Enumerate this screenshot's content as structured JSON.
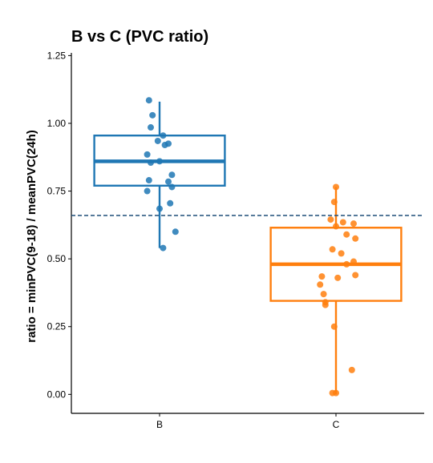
{
  "chart_data": {
    "type": "box",
    "title": "B vs C (PVC ratio)",
    "xlabel": "",
    "ylabel": "ratio = minPVC(9-18) / meanPVC(24h)",
    "ylim": [
      -0.07,
      1.26
    ],
    "yticks": [
      0.0,
      0.25,
      0.5,
      0.75,
      1.0,
      1.25
    ],
    "ytick_labels": [
      "0.00",
      "0.25",
      "0.50",
      "0.75",
      "1.00",
      "1.25"
    ],
    "categories": [
      "B",
      "C"
    ],
    "reference_line": {
      "y": 0.66,
      "style": "dashed",
      "color": "#1f4e79"
    },
    "grid": false,
    "groups": [
      {
        "name": "B",
        "color": "#1f77b4",
        "box": {
          "q1": 0.77,
          "median": 0.86,
          "q3": 0.955,
          "whisker_low": 0.54,
          "whisker_high": 1.08
        },
        "points": [
          {
            "x": 0.94,
            "y": 1.085
          },
          {
            "x": 0.96,
            "y": 1.03
          },
          {
            "x": 0.95,
            "y": 0.985
          },
          {
            "x": 1.02,
            "y": 0.955
          },
          {
            "x": 0.99,
            "y": 0.935
          },
          {
            "x": 1.05,
            "y": 0.925
          },
          {
            "x": 1.03,
            "y": 0.92
          },
          {
            "x": 0.93,
            "y": 0.885
          },
          {
            "x": 1.0,
            "y": 0.86
          },
          {
            "x": 0.95,
            "y": 0.855
          },
          {
            "x": 1.07,
            "y": 0.81
          },
          {
            "x": 0.94,
            "y": 0.79
          },
          {
            "x": 1.05,
            "y": 0.785
          },
          {
            "x": 1.07,
            "y": 0.765
          },
          {
            "x": 0.93,
            "y": 0.75
          },
          {
            "x": 1.06,
            "y": 0.705
          },
          {
            "x": 1.0,
            "y": 0.685
          },
          {
            "x": 1.09,
            "y": 0.6
          },
          {
            "x": 1.02,
            "y": 0.54
          }
        ]
      },
      {
        "name": "C",
        "color": "#ff7f0e",
        "box": {
          "q1": 0.345,
          "median": 0.48,
          "q3": 0.615,
          "whisker_low": 0.0,
          "whisker_high": 0.765
        },
        "points": [
          {
            "x": 2.0,
            "y": 0.765
          },
          {
            "x": 1.99,
            "y": 0.71
          },
          {
            "x": 1.97,
            "y": 0.645
          },
          {
            "x": 2.04,
            "y": 0.635
          },
          {
            "x": 2.1,
            "y": 0.63
          },
          {
            "x": 2.0,
            "y": 0.62
          },
          {
            "x": 2.06,
            "y": 0.59
          },
          {
            "x": 2.11,
            "y": 0.575
          },
          {
            "x": 1.98,
            "y": 0.535
          },
          {
            "x": 2.03,
            "y": 0.52
          },
          {
            "x": 2.1,
            "y": 0.49
          },
          {
            "x": 2.06,
            "y": 0.48
          },
          {
            "x": 2.11,
            "y": 0.44
          },
          {
            "x": 1.92,
            "y": 0.435
          },
          {
            "x": 2.01,
            "y": 0.43
          },
          {
            "x": 1.91,
            "y": 0.405
          },
          {
            "x": 1.93,
            "y": 0.37
          },
          {
            "x": 1.94,
            "y": 0.34
          },
          {
            "x": 1.94,
            "y": 0.33
          },
          {
            "x": 1.99,
            "y": 0.25
          },
          {
            "x": 2.09,
            "y": 0.09
          },
          {
            "x": 1.98,
            "y": 0.005
          },
          {
            "x": 2.0,
            "y": 0.005
          }
        ]
      }
    ]
  }
}
